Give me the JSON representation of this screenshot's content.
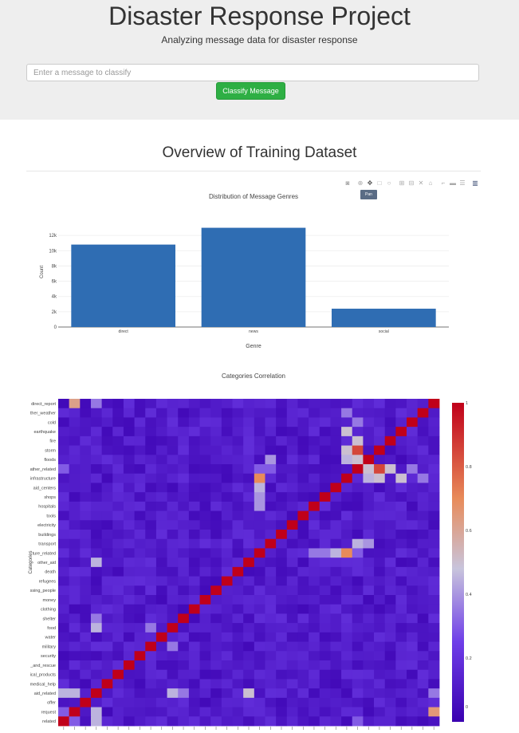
{
  "header": {
    "title": "Disaster Response Project",
    "subtitle": "Analyzing message data for disaster response",
    "input_placeholder": "Enter a message to classify",
    "button_label": "Classify Message"
  },
  "section": {
    "title": "Overview of Training Dataset"
  },
  "modebar": {
    "icons": [
      "camera-icon",
      "zoom-icon",
      "pan-icon",
      "box-select-icon",
      "lasso-icon",
      "zoom-in-icon",
      "zoom-out-icon",
      "autoscale-icon",
      "reset-axes-icon",
      "spike-lines-icon",
      "hover-closest-icon",
      "hover-compare-icon",
      "plotly-logo-icon"
    ],
    "tooltip": "Pan"
  },
  "colors": {
    "bar": "#2f6db3",
    "button": "#2eaf44",
    "jumbotron": "#eeeeee"
  },
  "chart_data": [
    {
      "type": "bar",
      "title": "Distribution of Message Genres",
      "xlabel": "Genre",
      "ylabel": "Count",
      "categories": [
        "direct",
        "news",
        "social"
      ],
      "values": [
        10800,
        13000,
        2400
      ],
      "ylim": [
        0,
        14000
      ],
      "yticks": [
        0,
        2000,
        4000,
        6000,
        8000,
        10000,
        12000
      ],
      "ytick_labels": [
        "0",
        "2k",
        "4k",
        "6k",
        "8k",
        "10k",
        "12k"
      ],
      "grid": true
    },
    {
      "type": "heatmap",
      "title": "Categories Correlation",
      "ylabel": "Categories",
      "rows": [
        "direct_report",
        "ther_weather",
        "cold",
        "earthquake",
        "fire",
        "storm",
        "floods",
        "ather_related",
        "infrastructure",
        "aid_centers",
        "shops",
        "hospitals",
        "tools",
        "electricity",
        "buildings",
        "transport",
        "ture_related",
        "other_aid",
        "death",
        "refugees",
        "ssing_people",
        "money",
        "clothing",
        "shelter",
        "food",
        "water",
        "military",
        "security",
        "_and_rescue",
        "ical_products",
        "medical_help",
        "aid_related",
        "offer",
        "request",
        "related"
      ],
      "colorbar_ticks": [
        "0",
        "0.2",
        "0.4",
        "0.6",
        "0.8",
        "1"
      ],
      "colorscale": [
        "#3a00b0",
        "#6f3ee8",
        "#c8c4dc",
        "#e88b5a",
        "#c0001a"
      ],
      "zrange": [
        0,
        1
      ],
      "notable_values": [
        {
          "row": "direct_report",
          "col": 1,
          "value": 0.62
        },
        {
          "row": "direct_report",
          "col": 3,
          "value": 0.35
        },
        {
          "row": "ther_weather",
          "col": 26,
          "value": 0.35
        },
        {
          "row": "earthquake",
          "col": 26,
          "value": 0.5
        },
        {
          "row": "storm",
          "col": 26,
          "value": 0.5
        },
        {
          "row": "storm",
          "col": 27,
          "value": 0.85
        },
        {
          "row": "floods",
          "col": 19,
          "value": 0.4
        },
        {
          "row": "floods",
          "col": 26,
          "value": 0.45
        },
        {
          "row": "floods",
          "col": 27,
          "value": 0.5
        },
        {
          "row": "ather_related",
          "col": 0,
          "value": 0.3
        },
        {
          "row": "ather_related",
          "col": 18,
          "value": 0.3
        },
        {
          "row": "ather_related",
          "col": 19,
          "value": 0.3
        },
        {
          "row": "ather_related",
          "col": 27,
          "value": 0.5
        },
        {
          "row": "ather_related",
          "col": 28,
          "value": 0.5
        },
        {
          "row": "ather_related",
          "col": 30,
          "value": 0.5
        },
        {
          "row": "ather_related",
          "col": 32,
          "value": 0.35
        },
        {
          "row": "infrastructure",
          "col": 18,
          "value": 0.7
        },
        {
          "row": "infrastructure",
          "col": 26,
          "value": 0.25
        },
        {
          "row": "aid_centers",
          "col": 18,
          "value": 0.45
        },
        {
          "row": "shops",
          "col": 18,
          "value": 0.4
        },
        {
          "row": "hospitals",
          "col": 18,
          "value": 0.4
        },
        {
          "row": "transport",
          "col": 27,
          "value": 0.45
        },
        {
          "row": "ture_related",
          "col": 23,
          "value": 0.35
        },
        {
          "row": "ture_related",
          "col": 24,
          "value": 0.35
        },
        {
          "row": "ture_related",
          "col": 25,
          "value": 0.45
        },
        {
          "row": "ture_related",
          "col": 26,
          "value": 0.7
        },
        {
          "row": "other_aid",
          "col": 3,
          "value": 0.45
        },
        {
          "row": "shelter",
          "col": 3,
          "value": 0.35
        },
        {
          "row": "food",
          "col": 3,
          "value": 0.45
        },
        {
          "row": "food",
          "col": 8,
          "value": 0.35
        },
        {
          "row": "aid_related",
          "col": 0,
          "value": 0.45
        },
        {
          "row": "aid_related",
          "col": 1,
          "value": 0.45
        },
        {
          "row": "aid_related",
          "col": 10,
          "value": 0.45
        },
        {
          "row": "aid_related",
          "col": 17,
          "value": 0.5
        },
        {
          "row": "request",
          "col": 3,
          "value": 0.45
        },
        {
          "row": "request",
          "col": 34,
          "value": 0.65
        },
        {
          "row": "related",
          "col": 3,
          "value": 0.45
        },
        {
          "row": "related",
          "col": 1,
          "value": 0.3
        }
      ]
    }
  ]
}
